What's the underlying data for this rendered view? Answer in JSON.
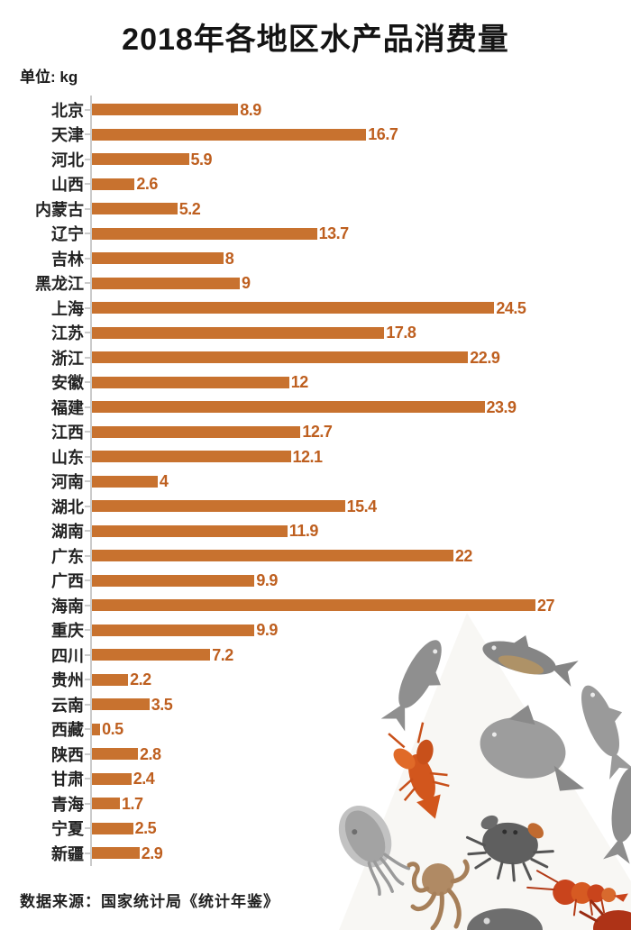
{
  "header": {
    "title": "2018年各地区水产品消费量",
    "unit_label": "单位: kg"
  },
  "footer": {
    "source": "数据来源：国家统计局《统计年鉴》"
  },
  "colors": {
    "bar": "#C8722F",
    "value_label": "#BE5F1F",
    "axis": "#CBCBCB",
    "title_text": "#141414",
    "category_text": "#222222"
  },
  "chart_data": {
    "type": "bar",
    "orientation": "horizontal",
    "title": "2018年各地区水产品消费量",
    "unit": "kg",
    "xlabel": "",
    "ylabel": "",
    "xlim": [
      0,
      27
    ],
    "grid": false,
    "value_labels_shown": true,
    "legend": null,
    "categories": [
      "北京",
      "天津",
      "河北",
      "山西",
      "内蒙古",
      "辽宁",
      "吉林",
      "黑龙江",
      "上海",
      "江苏",
      "浙江",
      "安徽",
      "福建",
      "江西",
      "山东",
      "河南",
      "湖北",
      "湖南",
      "广东",
      "广西",
      "海南",
      "重庆",
      "四川",
      "贵州",
      "云南",
      "西藏",
      "陕西",
      "甘肃",
      "青海",
      "宁夏",
      "新疆"
    ],
    "values": [
      8.9,
      16.7,
      5.9,
      2.6,
      5.2,
      13.7,
      8,
      9,
      24.5,
      17.8,
      22.9,
      12,
      23.9,
      12.7,
      12.1,
      4,
      15.4,
      11.9,
      22,
      9.9,
      27,
      9.9,
      7.2,
      2.2,
      3.5,
      0.5,
      2.8,
      2.4,
      1.7,
      2.5,
      2.9
    ]
  },
  "illustration": {
    "description": "watercolor seafood collage",
    "items": [
      "fish",
      "carp",
      "pomfret",
      "side-fish",
      "lobster",
      "cuttlefish",
      "octopus",
      "crab",
      "shrimp",
      "fish-head",
      "red-crab"
    ]
  }
}
